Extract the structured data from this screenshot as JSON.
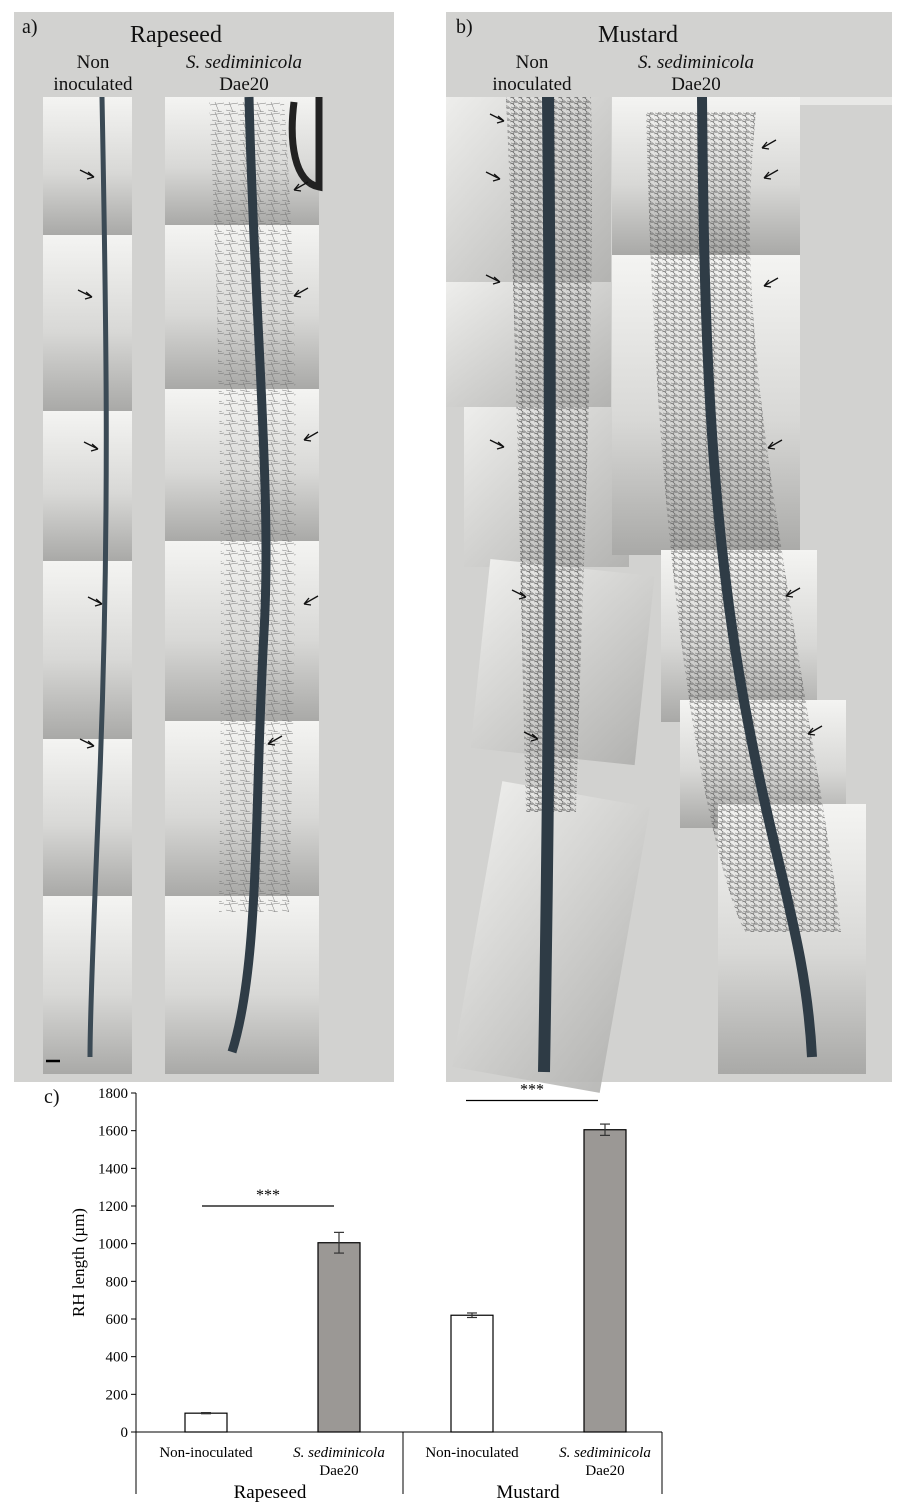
{
  "panel_a": {
    "label": "a)",
    "title": "Rapeseed",
    "col1": {
      "line1": "Non",
      "line2": "inoculated"
    },
    "col2": {
      "line1": "S. sediminicola",
      "line2": "Dae20"
    }
  },
  "panel_b": {
    "label": "b)",
    "title": "Mustard",
    "col1": {
      "line1": "Non",
      "line2": "inoculated"
    },
    "col2": {
      "line1": "S. sediminicola",
      "line2": "Dae20"
    }
  },
  "panel_c": {
    "label": "c)"
  },
  "chart_data": {
    "type": "bar",
    "ylabel": "RH length (µm)",
    "ylim": [
      0,
      1800
    ],
    "yticks": [
      "0",
      "200",
      "400",
      "600",
      "800",
      "1000",
      "1200",
      "1400",
      "1600",
      "1800"
    ],
    "groups": [
      "Rapeseed",
      "Mustard"
    ],
    "categories": [
      {
        "group": "Rapeseed",
        "line1": "Non-inoculated",
        "line2": "",
        "value": 100,
        "error": 3,
        "fill": "#ffffff"
      },
      {
        "group": "Rapeseed",
        "line1": "S. sediminicola",
        "line2": "Dae20",
        "value": 1005,
        "error": 55,
        "fill": "#9b9895"
      },
      {
        "group": "Mustard",
        "line1": "Non-inoculated",
        "line2": "",
        "value": 620,
        "error": 12,
        "fill": "#ffffff"
      },
      {
        "group": "Mustard",
        "line1": "S. sediminicola",
        "line2": "Dae20",
        "value": 1605,
        "error": 30,
        "fill": "#9b9895"
      }
    ],
    "significance": [
      {
        "group": "Rapeseed",
        "label": "***",
        "y": 1200
      },
      {
        "group": "Mustard",
        "label": "***",
        "y": 1760
      }
    ],
    "colors": {
      "inoculated": "#9b9895",
      "non_inoculated": "#ffffff"
    }
  }
}
